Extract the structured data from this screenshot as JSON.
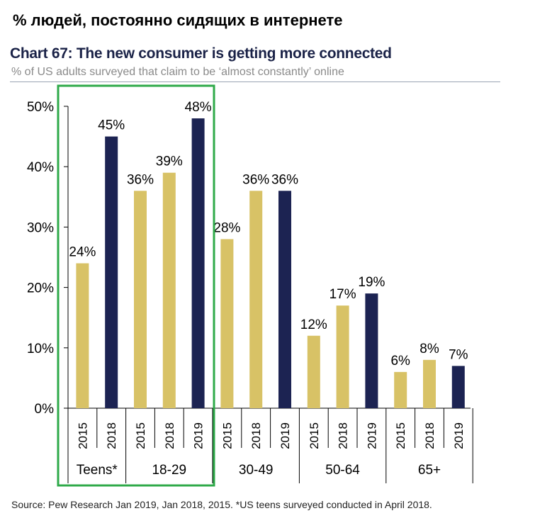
{
  "heading": "% людей, постоянно сидящих в интернете",
  "chart_data": {
    "type": "bar",
    "title": "Chart 67: The new consumer is getting more connected",
    "subtitle": "% of US adults surveyed that claim to be ‘almost constantly’ online",
    "ylim": [
      0,
      50
    ],
    "yticks": [
      "0%",
      "10%",
      "20%",
      "30%",
      "40%",
      "50%"
    ],
    "groups": [
      {
        "name": "Teens*",
        "bars": [
          {
            "year": "2015",
            "value": 24,
            "label": "24%"
          },
          {
            "year": "2018",
            "value": 45,
            "label": "45%"
          }
        ]
      },
      {
        "name": "18-29",
        "bars": [
          {
            "year": "2015",
            "value": 36,
            "label": "36%"
          },
          {
            "year": "2018",
            "value": 39,
            "label": "39%"
          },
          {
            "year": "2019",
            "value": 48,
            "label": "48%"
          }
        ]
      },
      {
        "name": "30-49",
        "bars": [
          {
            "year": "2015",
            "value": 28,
            "label": "28%"
          },
          {
            "year": "2018",
            "value": 36,
            "label": "36%"
          },
          {
            "year": "2019",
            "value": 36,
            "label": "36%"
          }
        ]
      },
      {
        "name": "50-64",
        "bars": [
          {
            "year": "2015",
            "value": 12,
            "label": "12%"
          },
          {
            "year": "2018",
            "value": 17,
            "label": "17%"
          },
          {
            "year": "2019",
            "value": 19,
            "label": "19%"
          }
        ]
      },
      {
        "name": "65+",
        "bars": [
          {
            "year": "2015",
            "value": 6,
            "label": "6%"
          },
          {
            "year": "2018",
            "value": 8,
            "label": "8%"
          },
          {
            "year": "2019",
            "value": 7,
            "label": "7%"
          }
        ]
      }
    ],
    "colors": {
      "gold": "#d8c266",
      "navy": "#1c2352",
      "highlight": "#2faa4a"
    },
    "highlighted_groups": [
      "Teens*",
      "18-29"
    ],
    "grid": false,
    "source": "Source: Pew Research Jan 2019, Jan 2018, 2015. *US teens surveyed conducted in April 2018."
  }
}
